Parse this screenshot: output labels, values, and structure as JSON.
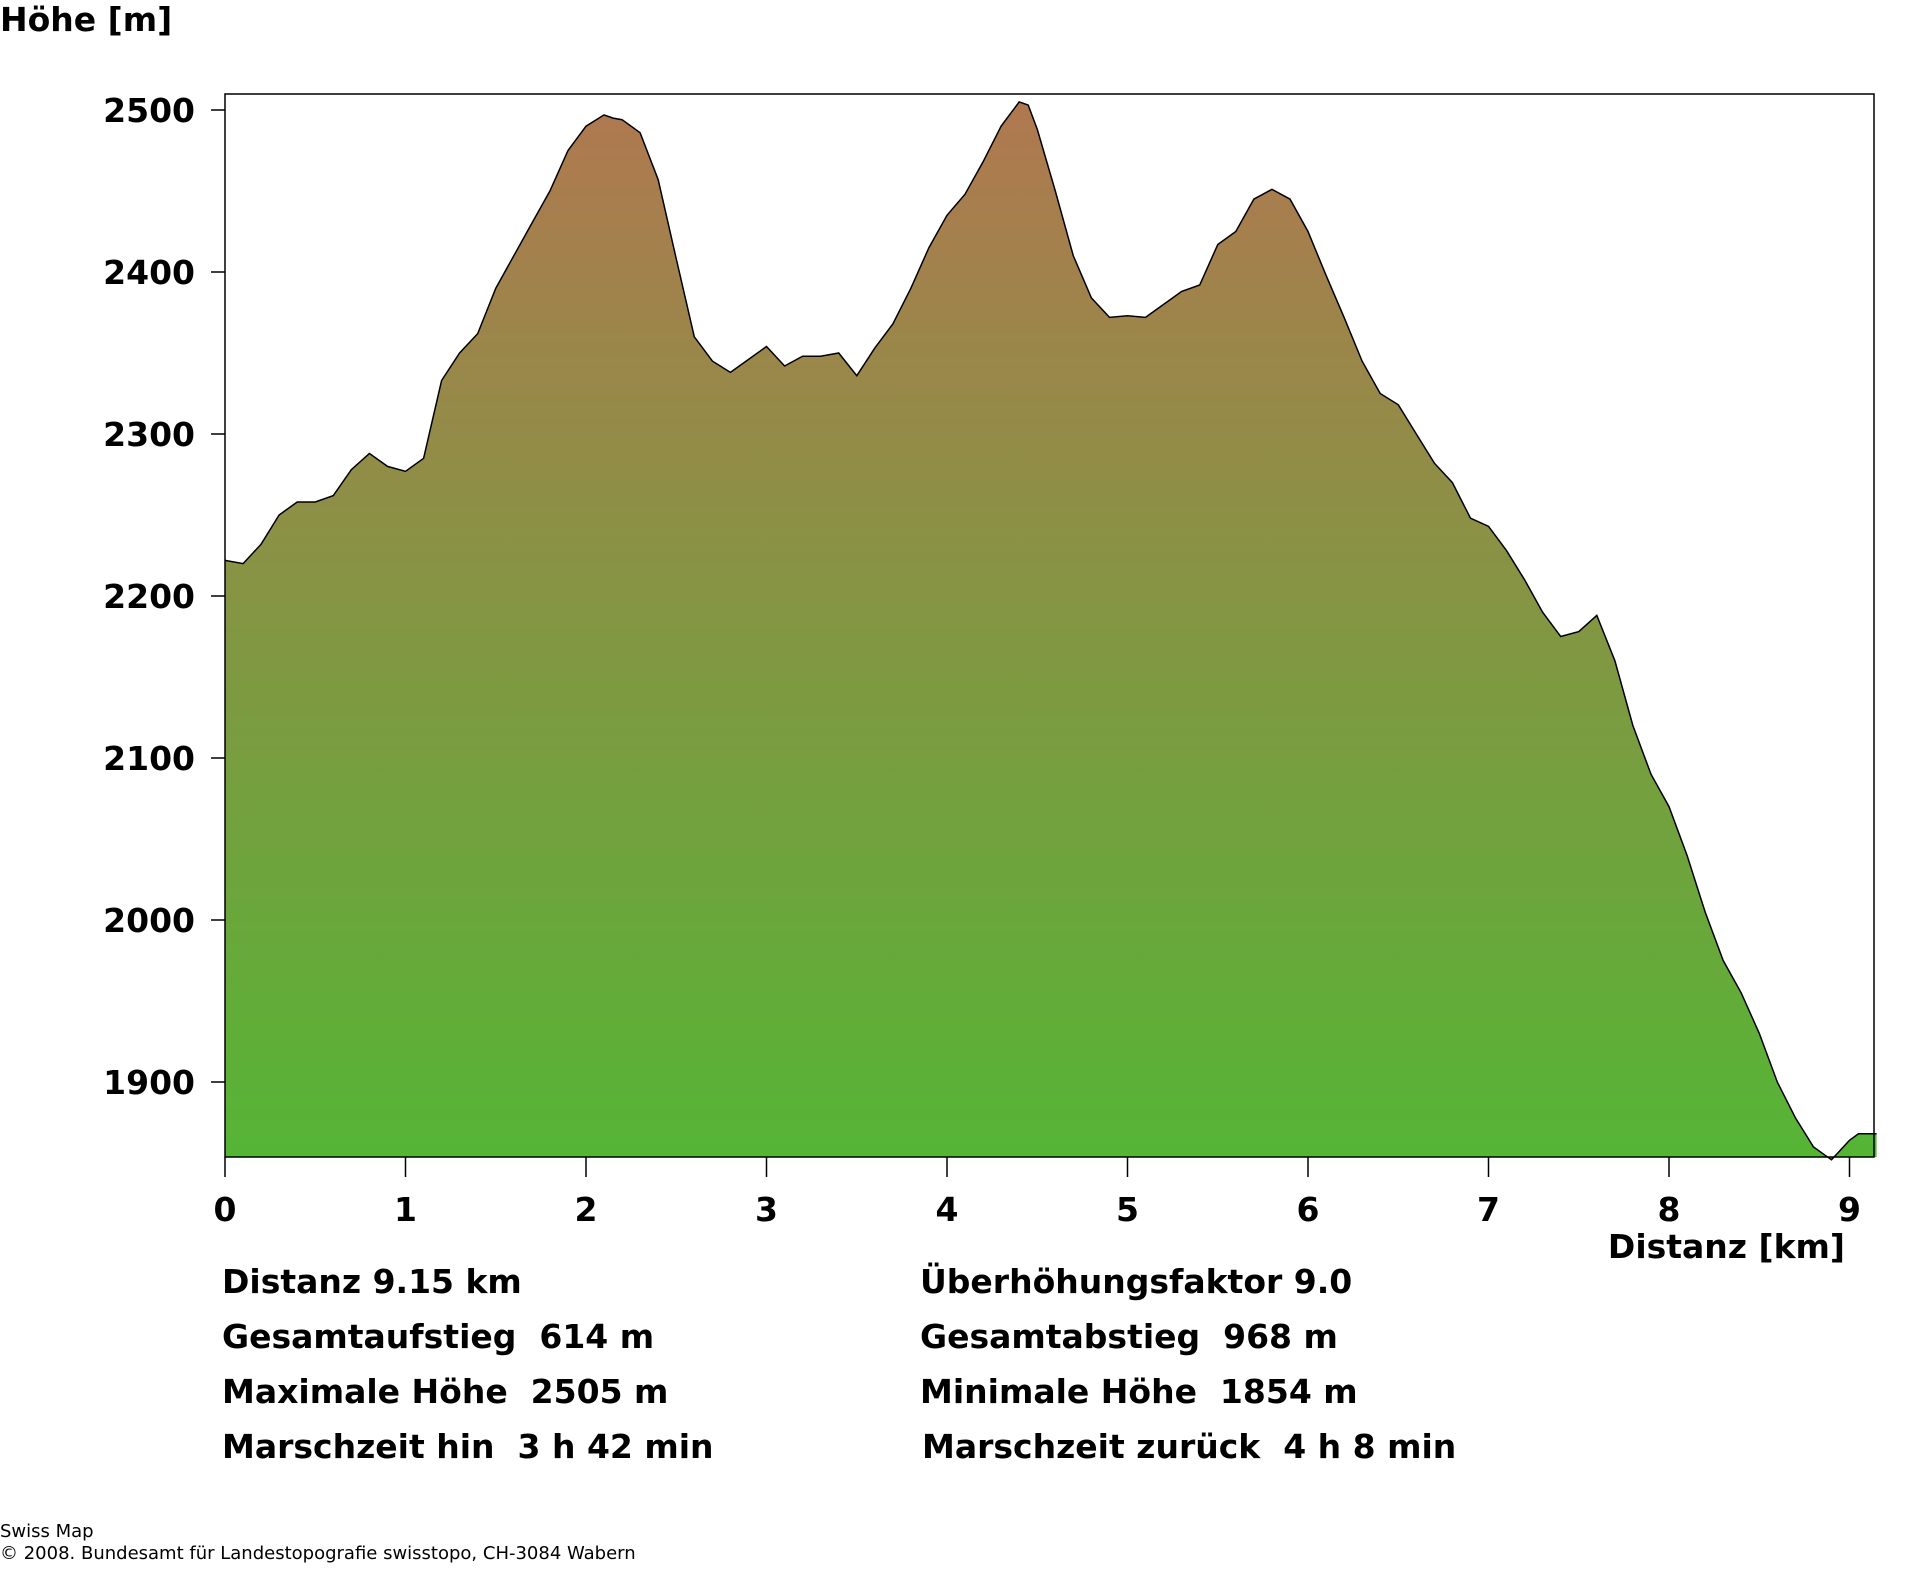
{
  "chart_data": {
    "type": "area",
    "title": "",
    "ylabel": "Höhe [m]",
    "xlabel": "Distanz [km]",
    "xlim": [
      0,
      9.15
    ],
    "ylim": [
      1854,
      2510
    ],
    "xticks": [
      "0",
      "1",
      "2",
      "3",
      "4",
      "5",
      "6",
      "7",
      "8",
      "9"
    ],
    "yticks": [
      "1900",
      "2000",
      "2100",
      "2200",
      "2300",
      "2400",
      "2500"
    ],
    "grid": false,
    "legend": "none",
    "fill_top_color": "#b07850",
    "fill_bottom_color": "#55b535",
    "line_color": "#000000",
    "series": [
      {
        "x": [
          0,
          0.1,
          0.2,
          0.3,
          0.4,
          0.5,
          0.6,
          0.7,
          0.8,
          0.9,
          1.0,
          1.1,
          1.2,
          1.3,
          1.4,
          1.5,
          1.6,
          1.7,
          1.8,
          1.9,
          2.0,
          2.1,
          2.15,
          2.2,
          2.3,
          2.4,
          2.5,
          2.6,
          2.7,
          2.8,
          2.9,
          3.0,
          3.1,
          3.2,
          3.3,
          3.4,
          3.5,
          3.6,
          3.7,
          3.8,
          3.9,
          4.0,
          4.1,
          4.2,
          4.3,
          4.4,
          4.45,
          4.5,
          4.6,
          4.7,
          4.8,
          4.9,
          5.0,
          5.1,
          5.2,
          5.3,
          5.4,
          5.5,
          5.6,
          5.7,
          5.8,
          5.9,
          6.0,
          6.1,
          6.2,
          6.3,
          6.4,
          6.5,
          6.6,
          6.7,
          6.8,
          6.9,
          7.0,
          7.1,
          7.2,
          7.3,
          7.4,
          7.5,
          7.6,
          7.7,
          7.8,
          7.9,
          8.0,
          8.1,
          8.2,
          8.3,
          8.4,
          8.5,
          8.6,
          8.7,
          8.8,
          8.9,
          9.0,
          9.05,
          9.1,
          9.15
        ],
        "values": [
          2222,
          2220,
          2232,
          2250,
          2258,
          2258,
          2262,
          2278,
          2288,
          2280,
          2277,
          2285,
          2333,
          2350,
          2362,
          2390,
          2410,
          2430,
          2450,
          2475,
          2490,
          2497,
          2495,
          2494,
          2486,
          2457,
          2408,
          2360,
          2345,
          2338,
          2346,
          2354,
          2342,
          2348,
          2348,
          2350,
          2336,
          2353,
          2368,
          2390,
          2415,
          2435,
          2448,
          2468,
          2490,
          2505,
          2503,
          2488,
          2450,
          2410,
          2384,
          2372,
          2373,
          2372,
          2380,
          2388,
          2392,
          2417,
          2425,
          2445,
          2451,
          2445,
          2425,
          2398,
          2372,
          2345,
          2325,
          2318,
          2300,
          2282,
          2270,
          2248,
          2243,
          2228,
          2210,
          2190,
          2175,
          2178,
          2188,
          2160,
          2120,
          2090,
          2070,
          2040,
          2005,
          1975,
          1955,
          1930,
          1900,
          1878,
          1860,
          1852,
          1864,
          1868,
          1868,
          1868
        ]
      }
    ]
  },
  "stats": {
    "distanz": "Distanz 9.15 km",
    "ueberhoehung": "Überhöhungsfaktor 9.0",
    "aufstieg": "Gesamtaufstieg  614 m",
    "abstieg": "Gesamtabstieg  968 m",
    "max_hoehe": "Maximale Höhe  2505 m",
    "min_hoehe": "Minimale Höhe  1854 m",
    "marsch_hin": "Marschzeit hin  3 h 42 min",
    "marsch_zurueck": "Marschzeit zurück  4 h 8 min"
  },
  "footer": {
    "line1": "Swiss Map",
    "line2": "© 2008. Bundesamt für Landestopografie swisstopo, CH-3084 Wabern"
  }
}
